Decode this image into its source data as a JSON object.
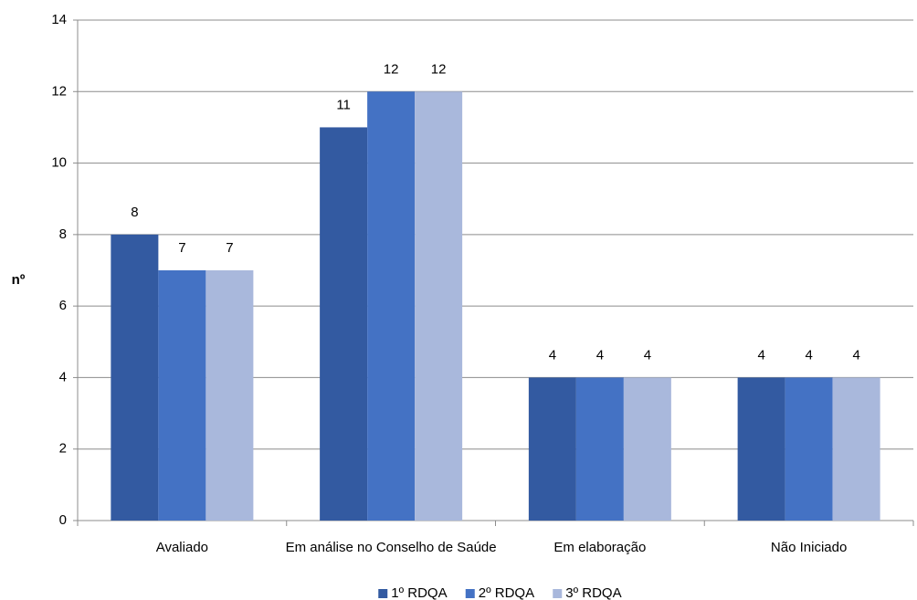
{
  "chart_data": {
    "type": "bar",
    "categories": [
      "Avaliado",
      "Em análise no Conselho de Saúde",
      "Em elaboração",
      "Não Iniciado"
    ],
    "series": [
      {
        "name": "1º RDQA",
        "color": "#335aa1",
        "values": [
          8,
          11,
          4,
          4
        ]
      },
      {
        "name": "2º RDQA",
        "color": "#4472c4",
        "values": [
          7,
          12,
          4,
          4
        ]
      },
      {
        "name": "3º RDQA",
        "color": "#a9b8dc",
        "values": [
          7,
          12,
          4,
          4
        ]
      }
    ],
    "y_label": "nº",
    "ylim": [
      0,
      14
    ],
    "yticks": [
      0,
      2,
      4,
      6,
      8,
      10,
      12,
      14
    ],
    "grid": true,
    "legend": "bottom"
  }
}
